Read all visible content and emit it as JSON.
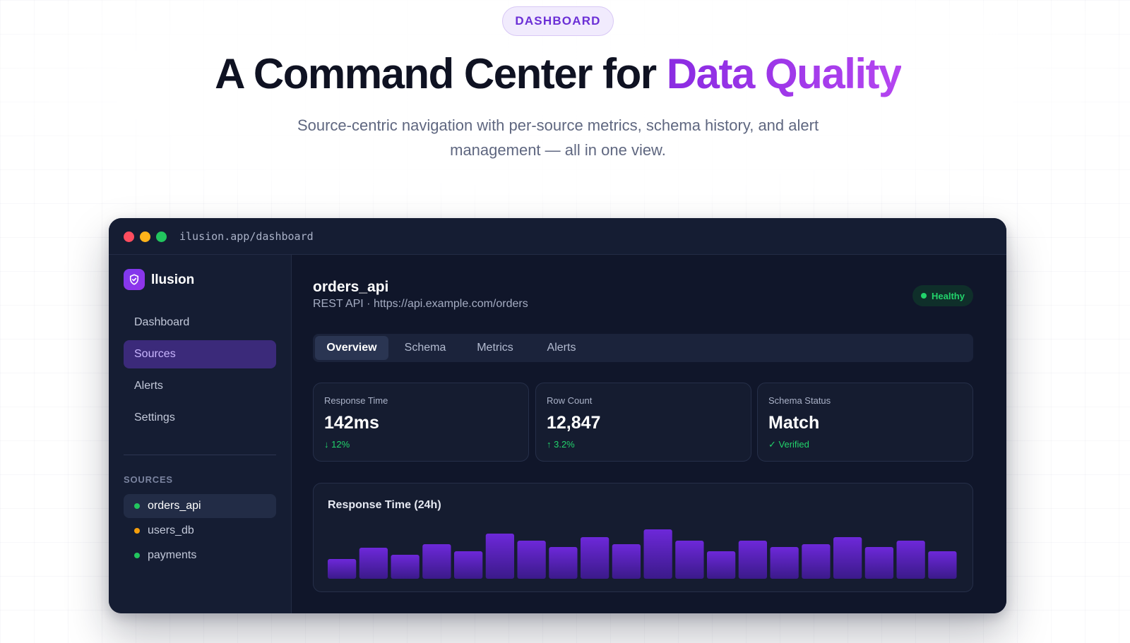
{
  "hero": {
    "badge": "DASHBOARD",
    "title_main": "A Command Center for ",
    "title_accent": "Data Quality",
    "subtitle": "Source-centric navigation with per-source metrics, schema history, and alert management — all in one view."
  },
  "window": {
    "url": "ilusion.app/dashboard"
  },
  "sidebar": {
    "brand": "llusion",
    "nav": [
      {
        "label": "Dashboard",
        "active": false
      },
      {
        "label": "Sources",
        "active": true
      },
      {
        "label": "Alerts",
        "active": false
      },
      {
        "label": "Settings",
        "active": false
      }
    ],
    "sources_label": "SOURCES",
    "sources": [
      {
        "name": "orders_api",
        "status_color": "#22c55e",
        "active": true
      },
      {
        "name": "users_db",
        "status_color": "#f59e0b",
        "active": false
      },
      {
        "name": "payments",
        "status_color": "#22c55e",
        "active": false
      }
    ]
  },
  "main": {
    "title": "orders_api",
    "subtitle": "REST API · https://api.example.com/orders",
    "status": "Healthy",
    "tabs": [
      "Overview",
      "Schema",
      "Metrics",
      "Alerts"
    ],
    "active_tab": "Overview",
    "metrics": [
      {
        "label": "Response Time",
        "value": "142ms",
        "delta": "↓ 12%"
      },
      {
        "label": "Row Count",
        "value": "12,847",
        "delta": "↑ 3.2%"
      },
      {
        "label": "Schema Status",
        "value": "Match",
        "delta": "✓ Verified"
      }
    ]
  },
  "chart_data": {
    "type": "bar",
    "title": "Response Time (24h)",
    "values": [
      28,
      44,
      34,
      49,
      39,
      64,
      54,
      45,
      59,
      49,
      70,
      54,
      39,
      54,
      45,
      49,
      59,
      45,
      54,
      39
    ],
    "ylim": [
      0,
      75
    ],
    "colors": {
      "top": "#6d28d9",
      "bottom": "#3b1a8a"
    }
  }
}
